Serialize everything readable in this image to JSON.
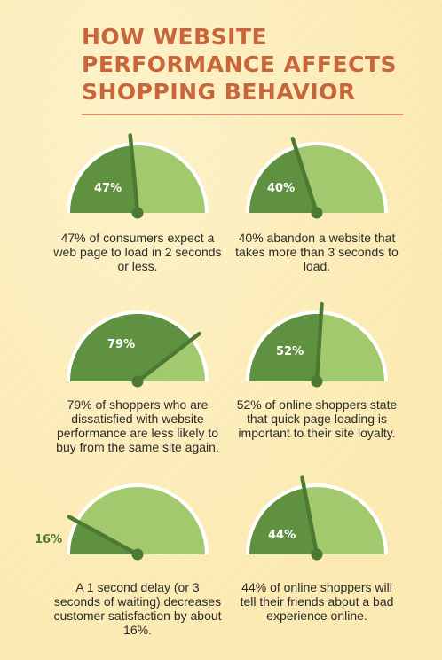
{
  "title_lines": [
    "HOW WEBSITE",
    "PERFORMANCE AFFECTS",
    "SHOPPING BEHAVIOR"
  ],
  "colors": {
    "title": "#c8653a",
    "divider": "#d98e68",
    "gauge_light": "#a3c96e",
    "gauge_dark": "#5f9140",
    "needle": "#4d7a32",
    "rim": "#ffffff"
  },
  "stats": [
    {
      "percent": 47,
      "label": "47%",
      "caption": "47% of consumers expect a web page to load in 2 seconds or less."
    },
    {
      "percent": 40,
      "label": "40%",
      "caption": "40% abandon a website that takes more than 3 seconds to load."
    },
    {
      "percent": 79,
      "label": "79%",
      "caption": "79% of shoppers who are dissatisfied with website performance are less likely to buy from the same site again."
    },
    {
      "percent": 52,
      "label": "52%",
      "caption": "52% of online shoppers state that quick page loading is important to their site loyalty."
    },
    {
      "percent": 16,
      "label": "16%",
      "caption": "A 1 second delay (or 3 seconds of waiting) decreases customer satisfaction by about 16%."
    },
    {
      "percent": 44,
      "label": "44%",
      "caption": "44% of online shoppers will tell their friends about a bad experience online."
    }
  ]
}
